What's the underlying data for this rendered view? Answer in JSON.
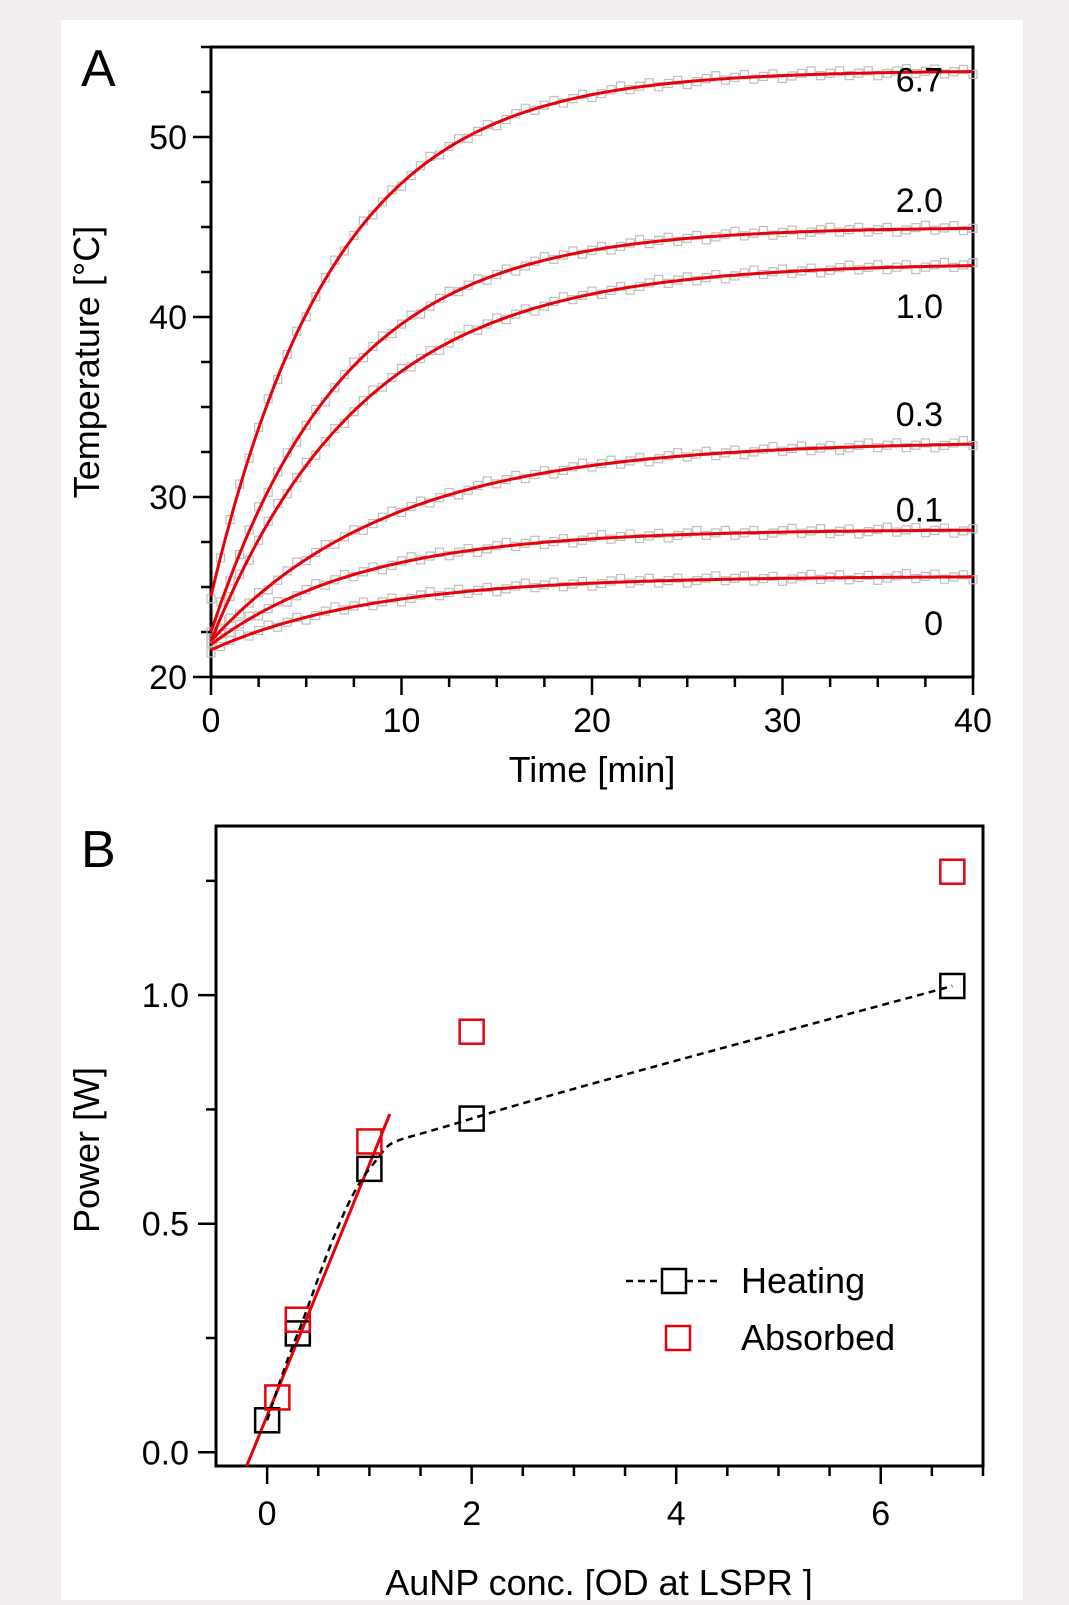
{
  "chart_data": [
    {
      "panel": "A",
      "type": "line",
      "xlabel": "Time [min]",
      "ylabel": "Temperature [°C]",
      "xlim": [
        0,
        40
      ],
      "ylim": [
        20,
        55
      ],
      "xticks": [
        0,
        10,
        20,
        30,
        40
      ],
      "yticks": [
        20,
        30,
        40,
        50
      ],
      "series": [
        {
          "label": "6.7",
          "start": 24.5,
          "plateau": 53.7,
          "time_constant_min": 6.5
        },
        {
          "label": "2.0",
          "start": 22.5,
          "plateau": 45.0,
          "time_constant_min": 7.0
        },
        {
          "label": "1.0",
          "start": 22.0,
          "plateau": 43.0,
          "time_constant_min": 8.0
        },
        {
          "label": "0.3",
          "start": 22.0,
          "plateau": 33.1,
          "time_constant_min": 9.5
        },
        {
          "label": "0.1",
          "start": 21.8,
          "plateau": 28.2,
          "time_constant_min": 8.0
        },
        {
          "label": "0",
          "start": 21.5,
          "plateau": 25.6,
          "time_constant_min": 8.5
        }
      ],
      "colors": {
        "fit": "#e8000b",
        "data": "#bfbfbf"
      }
    },
    {
      "panel": "B",
      "type": "scatter",
      "xlabel": "AuNP conc. [OD at LSPR    ]",
      "ylabel": "Power [W]",
      "xlim": [
        -0.5,
        7.0
      ],
      "ylim": [
        -0.03,
        1.37
      ],
      "xticks": [
        0,
        2,
        4,
        6
      ],
      "yticks": [
        0.0,
        0.5,
        1.0
      ],
      "ytick_labels": [
        "0.0",
        "0.5",
        "1.0"
      ],
      "series": [
        {
          "name": "Heating",
          "x": [
            0,
            0.3,
            1.0,
            2.0,
            6.7
          ],
          "y": [
            0.07,
            0.26,
            0.62,
            0.73,
            1.02
          ],
          "marker": "open-square",
          "color": "#000000",
          "line": "dashed"
        },
        {
          "name": "Absorbed",
          "x": [
            0.1,
            0.3,
            1.0,
            2.0,
            6.7
          ],
          "y": [
            0.12,
            0.29,
            0.68,
            0.92,
            1.27
          ],
          "marker": "open-square",
          "color": "#e8000b"
        }
      ],
      "linear_fit": {
        "x": [
          -0.2,
          1.2
        ],
        "y": [
          -0.03,
          0.74
        ],
        "color": "#e8000b"
      }
    }
  ],
  "panels": {
    "a_letter": "A",
    "b_letter": "B"
  }
}
